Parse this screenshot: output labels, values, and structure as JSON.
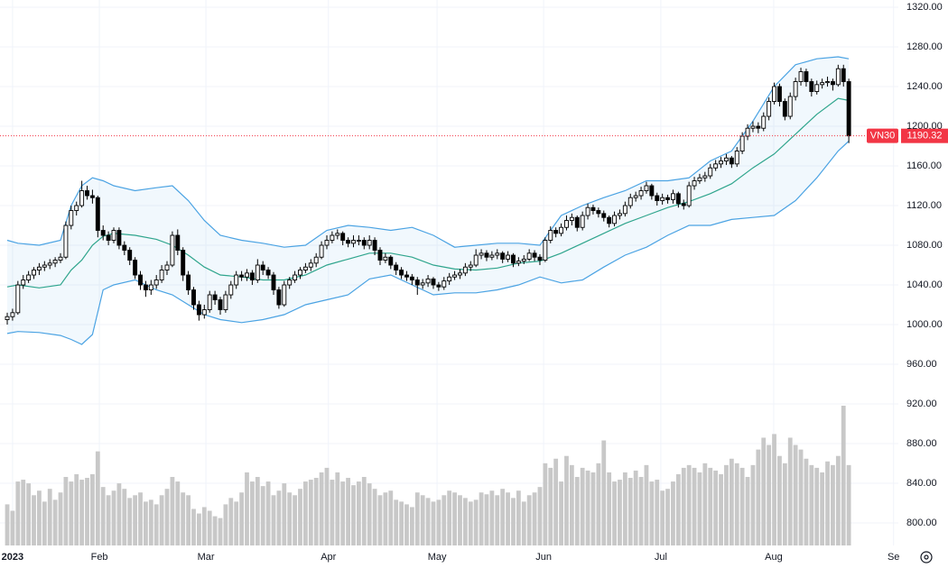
{
  "chart_data": {
    "type": "candlestick",
    "xlim": [
      -1.36,
      167.3
    ],
    "ylim": [
      777.3,
      1327.3
    ],
    "xticks": [
      {
        "value": 1,
        "label": "2023"
      },
      {
        "value": 17.3,
        "label": "Feb"
      },
      {
        "value": 37.3,
        "label": "Mar"
      },
      {
        "value": 60.3,
        "label": "Apr"
      },
      {
        "value": 80.7,
        "label": "May"
      },
      {
        "value": 100.7,
        "label": "Jun"
      },
      {
        "value": 122.7,
        "label": "Jul"
      },
      {
        "value": 143.9,
        "label": "Aug"
      },
      {
        "value": 166.4,
        "label": "Se"
      }
    ],
    "yticks": [
      {
        "value": 1320,
        "label": "1320.00"
      },
      {
        "value": 1280,
        "label": "1280.00"
      },
      {
        "value": 1240,
        "label": "1240.00"
      },
      {
        "value": 1200,
        "label": "1200.00"
      },
      {
        "value": 1160,
        "label": "1160.00"
      },
      {
        "value": 1120,
        "label": "1120.00"
      },
      {
        "value": 1080,
        "label": "1080.00"
      },
      {
        "value": 1040,
        "label": "1040.00"
      },
      {
        "value": 1000,
        "label": "1000.00"
      },
      {
        "value": 960,
        "label": "960.00"
      },
      {
        "value": 920,
        "label": "920.00"
      },
      {
        "value": 880,
        "label": "880.00"
      },
      {
        "value": 840,
        "label": "840.00"
      },
      {
        "value": 800,
        "label": "800.00"
      }
    ],
    "grid": true,
    "up_color": "#ffffff",
    "down_color": "#000000",
    "volume_color": "#c8c8c8",
    "band_color": "#4ba3e3",
    "middle_color": "#2fa58d",
    "last_price": {
      "label": "VN30",
      "value": 1190.32,
      "color": "#f23645"
    },
    "x": [
      0,
      1,
      2,
      3,
      4,
      5,
      6,
      7,
      8,
      9,
      10,
      11,
      12,
      13,
      14,
      15,
      16,
      17,
      18,
      19,
      20,
      21,
      22,
      23,
      24,
      25,
      26,
      27,
      28,
      29,
      30,
      31,
      32,
      33,
      34,
      35,
      36,
      37,
      38,
      39,
      40,
      41,
      42,
      43,
      44,
      45,
      46,
      47,
      48,
      49,
      50,
      51,
      52,
      53,
      54,
      55,
      56,
      57,
      58,
      59,
      60,
      61,
      62,
      63,
      64,
      65,
      66,
      67,
      68,
      69,
      70,
      71,
      72,
      73,
      74,
      75,
      76,
      77,
      78,
      79,
      80,
      81,
      82,
      83,
      84,
      85,
      86,
      87,
      88,
      89,
      90,
      91,
      92,
      93,
      94,
      95,
      96,
      97,
      98,
      99,
      100,
      101,
      102,
      103,
      104,
      105,
      106,
      107,
      108,
      109,
      110,
      111,
      112,
      113,
      114,
      115,
      116,
      117,
      118,
      119,
      120,
      121,
      122,
      123,
      124,
      125,
      126,
      127,
      128,
      129,
      130,
      131,
      132,
      133,
      134,
      135,
      136,
      137,
      138,
      139,
      140,
      141,
      142,
      143,
      144,
      145,
      146,
      147,
      148,
      149,
      150,
      151,
      152,
      153,
      154,
      155,
      156,
      157,
      158
    ],
    "ohlc": [
      [
        1005,
        1012,
        1000,
        1008
      ],
      [
        1008,
        1016,
        1004,
        1012
      ],
      [
        1012,
        1044,
        1010,
        1040
      ],
      [
        1040,
        1050,
        1036,
        1045
      ],
      [
        1045,
        1054,
        1042,
        1050
      ],
      [
        1050,
        1058,
        1046,
        1055
      ],
      [
        1055,
        1062,
        1050,
        1058
      ],
      [
        1058,
        1064,
        1054,
        1060
      ],
      [
        1060,
        1066,
        1056,
        1062
      ],
      [
        1062,
        1068,
        1058,
        1065
      ],
      [
        1065,
        1072,
        1062,
        1068
      ],
      [
        1068,
        1104,
        1066,
        1100
      ],
      [
        1100,
        1120,
        1096,
        1115
      ],
      [
        1115,
        1124,
        1110,
        1120
      ],
      [
        1120,
        1145,
        1118,
        1135
      ],
      [
        1135,
        1140,
        1126,
        1130
      ],
      [
        1130,
        1136,
        1122,
        1128
      ],
      [
        1128,
        1130,
        1088,
        1095
      ],
      [
        1095,
        1100,
        1085,
        1090
      ],
      [
        1090,
        1094,
        1080,
        1085
      ],
      [
        1085,
        1098,
        1082,
        1095
      ],
      [
        1095,
        1098,
        1076,
        1080
      ],
      [
        1080,
        1084,
        1070,
        1075
      ],
      [
        1075,
        1078,
        1060,
        1065
      ],
      [
        1065,
        1068,
        1046,
        1050
      ],
      [
        1050,
        1054,
        1035,
        1040
      ],
      [
        1040,
        1044,
        1028,
        1035
      ],
      [
        1035,
        1045,
        1030,
        1040
      ],
      [
        1040,
        1050,
        1036,
        1045
      ],
      [
        1045,
        1060,
        1042,
        1055
      ],
      [
        1055,
        1064,
        1050,
        1060
      ],
      [
        1060,
        1094,
        1058,
        1090
      ],
      [
        1090,
        1096,
        1070,
        1075
      ],
      [
        1075,
        1078,
        1044,
        1050
      ],
      [
        1050,
        1054,
        1030,
        1035
      ],
      [
        1035,
        1038,
        1015,
        1020
      ],
      [
        1020,
        1024,
        1004,
        1010
      ],
      [
        1010,
        1020,
        1006,
        1015
      ],
      [
        1015,
        1034,
        1012,
        1030
      ],
      [
        1030,
        1034,
        1020,
        1025
      ],
      [
        1025,
        1028,
        1010,
        1015
      ],
      [
        1015,
        1034,
        1012,
        1030
      ],
      [
        1030,
        1044,
        1026,
        1040
      ],
      [
        1040,
        1054,
        1036,
        1050
      ],
      [
        1050,
        1054,
        1044,
        1048
      ],
      [
        1048,
        1056,
        1044,
        1052
      ],
      [
        1052,
        1055,
        1040,
        1045
      ],
      [
        1045,
        1066,
        1042,
        1060
      ],
      [
        1060,
        1064,
        1050,
        1055
      ],
      [
        1055,
        1058,
        1046,
        1050
      ],
      [
        1050,
        1053,
        1030,
        1035
      ],
      [
        1035,
        1038,
        1016,
        1020
      ],
      [
        1020,
        1044,
        1018,
        1040
      ],
      [
        1040,
        1048,
        1036,
        1045
      ],
      [
        1045,
        1054,
        1042,
        1050
      ],
      [
        1050,
        1058,
        1046,
        1055
      ],
      [
        1055,
        1062,
        1052,
        1058
      ],
      [
        1058,
        1066,
        1054,
        1062
      ],
      [
        1062,
        1072,
        1058,
        1068
      ],
      [
        1068,
        1084,
        1066,
        1080
      ],
      [
        1080,
        1090,
        1076,
        1085
      ],
      [
        1085,
        1094,
        1082,
        1090
      ],
      [
        1090,
        1096,
        1086,
        1092
      ],
      [
        1092,
        1094,
        1080,
        1085
      ],
      [
        1085,
        1088,
        1078,
        1082
      ],
      [
        1082,
        1090,
        1078,
        1085
      ],
      [
        1085,
        1090,
        1080,
        1085
      ],
      [
        1085,
        1088,
        1076,
        1080
      ],
      [
        1080,
        1090,
        1076,
        1085
      ],
      [
        1085,
        1088,
        1070,
        1075
      ],
      [
        1075,
        1078,
        1060,
        1065
      ],
      [
        1065,
        1072,
        1062,
        1068
      ],
      [
        1068,
        1070,
        1056,
        1060
      ],
      [
        1060,
        1063,
        1050,
        1055
      ],
      [
        1055,
        1058,
        1046,
        1050
      ],
      [
        1050,
        1054,
        1044,
        1048
      ],
      [
        1048,
        1051,
        1040,
        1045
      ],
      [
        1045,
        1048,
        1030,
        1040
      ],
      [
        1040,
        1046,
        1036,
        1042
      ],
      [
        1042,
        1050,
        1038,
        1046
      ],
      [
        1046,
        1048,
        1036,
        1040
      ],
      [
        1040,
        1043,
        1034,
        1038
      ],
      [
        1038,
        1048,
        1035,
        1044
      ],
      [
        1044,
        1052,
        1040,
        1048
      ],
      [
        1048,
        1054,
        1045,
        1050
      ],
      [
        1050,
        1056,
        1046,
        1052
      ],
      [
        1052,
        1062,
        1049,
        1058
      ],
      [
        1058,
        1064,
        1054,
        1060
      ],
      [
        1060,
        1076,
        1058,
        1070
      ],
      [
        1070,
        1076,
        1066,
        1072
      ],
      [
        1072,
        1075,
        1064,
        1068
      ],
      [
        1068,
        1074,
        1065,
        1070
      ],
      [
        1070,
        1076,
        1066,
        1072
      ],
      [
        1072,
        1074,
        1062,
        1066
      ],
      [
        1066,
        1074,
        1063,
        1070
      ],
      [
        1070,
        1072,
        1058,
        1062
      ],
      [
        1062,
        1068,
        1059,
        1064
      ],
      [
        1064,
        1070,
        1061,
        1066
      ],
      [
        1066,
        1076,
        1064,
        1072
      ],
      [
        1072,
        1075,
        1064,
        1068
      ],
      [
        1068,
        1071,
        1060,
        1065
      ],
      [
        1065,
        1088,
        1063,
        1085
      ],
      [
        1085,
        1099,
        1082,
        1095
      ],
      [
        1095,
        1098,
        1088,
        1092
      ],
      [
        1092,
        1102,
        1089,
        1098
      ],
      [
        1098,
        1110,
        1095,
        1105
      ],
      [
        1105,
        1112,
        1100,
        1108
      ],
      [
        1108,
        1110,
        1094,
        1098
      ],
      [
        1098,
        1114,
        1095,
        1110
      ],
      [
        1110,
        1122,
        1106,
        1118
      ],
      [
        1118,
        1121,
        1111,
        1115
      ],
      [
        1115,
        1118,
        1108,
        1112
      ],
      [
        1112,
        1115,
        1104,
        1108
      ],
      [
        1108,
        1110,
        1098,
        1102
      ],
      [
        1102,
        1114,
        1099,
        1110
      ],
      [
        1110,
        1116,
        1106,
        1112
      ],
      [
        1112,
        1124,
        1109,
        1120
      ],
      [
        1120,
        1132,
        1117,
        1128
      ],
      [
        1128,
        1134,
        1124,
        1130
      ],
      [
        1130,
        1139,
        1126,
        1135
      ],
      [
        1135,
        1144,
        1132,
        1140
      ],
      [
        1140,
        1142,
        1126,
        1130
      ],
      [
        1130,
        1133,
        1120,
        1125
      ],
      [
        1125,
        1132,
        1121,
        1128
      ],
      [
        1128,
        1131,
        1122,
        1126
      ],
      [
        1126,
        1136,
        1122,
        1132
      ],
      [
        1132,
        1134,
        1118,
        1122
      ],
      [
        1122,
        1126,
        1116,
        1120
      ],
      [
        1120,
        1144,
        1118,
        1140
      ],
      [
        1140,
        1149,
        1136,
        1145
      ],
      [
        1145,
        1152,
        1142,
        1148
      ],
      [
        1148,
        1154,
        1144,
        1150
      ],
      [
        1150,
        1162,
        1147,
        1158
      ],
      [
        1158,
        1166,
        1155,
        1162
      ],
      [
        1162,
        1169,
        1158,
        1165
      ],
      [
        1165,
        1172,
        1161,
        1168
      ],
      [
        1168,
        1170,
        1158,
        1162
      ],
      [
        1162,
        1179,
        1159,
        1175
      ],
      [
        1175,
        1194,
        1172,
        1190
      ],
      [
        1190,
        1202,
        1186,
        1198
      ],
      [
        1198,
        1205,
        1194,
        1200
      ],
      [
        1200,
        1204,
        1193,
        1198
      ],
      [
        1198,
        1214,
        1195,
        1210
      ],
      [
        1210,
        1229,
        1206,
        1225
      ],
      [
        1225,
        1244,
        1222,
        1240
      ],
      [
        1240,
        1243,
        1220,
        1225
      ],
      [
        1225,
        1228,
        1206,
        1210
      ],
      [
        1210,
        1234,
        1207,
        1230
      ],
      [
        1230,
        1249,
        1226,
        1245
      ],
      [
        1245,
        1259,
        1241,
        1255
      ],
      [
        1255,
        1258,
        1240,
        1245
      ],
      [
        1245,
        1248,
        1230,
        1235
      ],
      [
        1235,
        1246,
        1232,
        1242
      ],
      [
        1242,
        1248,
        1238,
        1244
      ],
      [
        1244,
        1250,
        1240,
        1245
      ],
      [
        1245,
        1248,
        1236,
        1242
      ],
      [
        1242,
        1262,
        1240,
        1258
      ],
      [
        1258,
        1262,
        1240,
        1245
      ],
      [
        1245,
        1248,
        1183,
        1190.32
      ]
    ],
    "volume": [
      45,
      38,
      70,
      72,
      68,
      55,
      60,
      48,
      62,
      50,
      58,
      75,
      70,
      78,
      72,
      74,
      78,
      103,
      64,
      55,
      60,
      68,
      62,
      52,
      55,
      58,
      48,
      50,
      45,
      55,
      62,
      75,
      70,
      58,
      55,
      40,
      35,
      42,
      38,
      32,
      30,
      45,
      52,
      48,
      58,
      80,
      70,
      75,
      65,
      70,
      55,
      60,
      68,
      58,
      55,
      62,
      70,
      72,
      74,
      80,
      85,
      72,
      80,
      70,
      74,
      66,
      70,
      75,
      68,
      62,
      55,
      58,
      60,
      50,
      48,
      45,
      42,
      58,
      55,
      52,
      48,
      50,
      55,
      60,
      58,
      55,
      52,
      48,
      50,
      58,
      56,
      60,
      55,
      62,
      58,
      52,
      60,
      48,
      55,
      58,
      64,
      90,
      85,
      95,
      70,
      98,
      88,
      75,
      85,
      82,
      80,
      90,
      115,
      80,
      70,
      72,
      80,
      74,
      82,
      75,
      88,
      70,
      72,
      60,
      62,
      70,
      78,
      85,
      88,
      85,
      80,
      90,
      85,
      82,
      78,
      88,
      95,
      90,
      85,
      75,
      88,
      105,
      118,
      110,
      122,
      98,
      90,
      118,
      110,
      105,
      95,
      88,
      85,
      80,
      92,
      88,
      98,
      153,
      88
    ],
    "bands": {
      "x": [
        0,
        2,
        6,
        10,
        12,
        14,
        16,
        18,
        20,
        24,
        28,
        31,
        34,
        37,
        40,
        44,
        48,
        52,
        56,
        60,
        64,
        68,
        72,
        76,
        80,
        84,
        88,
        92,
        96,
        100,
        104,
        108,
        112,
        116,
        120,
        124,
        128,
        132,
        136,
        140,
        144,
        148,
        152,
        156,
        158
      ],
      "upper": [
        1085,
        1082,
        1080,
        1085,
        1120,
        1140,
        1148,
        1145,
        1140,
        1135,
        1138,
        1140,
        1125,
        1105,
        1090,
        1085,
        1082,
        1078,
        1080,
        1095,
        1100,
        1098,
        1095,
        1098,
        1090,
        1078,
        1080,
        1082,
        1082,
        1080,
        1110,
        1120,
        1128,
        1135,
        1145,
        1145,
        1148,
        1165,
        1175,
        1205,
        1240,
        1262,
        1268,
        1270,
        1268
      ],
      "middle": [
        1038,
        1040,
        1037,
        1040,
        1055,
        1065,
        1080,
        1089,
        1092,
        1090,
        1086,
        1080,
        1070,
        1058,
        1050,
        1048,
        1045,
        1045,
        1050,
        1060,
        1066,
        1072,
        1072,
        1068,
        1060,
        1056,
        1055,
        1057,
        1062,
        1064,
        1072,
        1082,
        1092,
        1102,
        1110,
        1118,
        1124,
        1132,
        1142,
        1158,
        1172,
        1192,
        1212,
        1228,
        1226
      ],
      "lower": [
        991,
        993,
        992,
        989,
        985,
        980,
        990,
        1035,
        1040,
        1045,
        1035,
        1030,
        1020,
        1010,
        1005,
        1002,
        1005,
        1010,
        1020,
        1025,
        1030,
        1046,
        1050,
        1040,
        1030,
        1032,
        1032,
        1035,
        1040,
        1048,
        1042,
        1045,
        1058,
        1070,
        1078,
        1090,
        1100,
        1100,
        1106,
        1108,
        1110,
        1125,
        1148,
        1175,
        1185
      ]
    }
  }
}
